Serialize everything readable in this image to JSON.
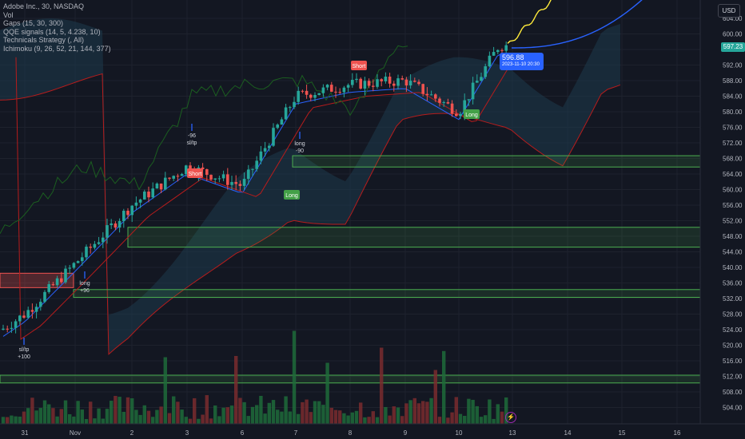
{
  "legend": {
    "symbol": "Adobe Inc., 30, NASDAQ",
    "vol": "Vol",
    "gaps": "Gaps (15, 30, 300)",
    "qqe": "QQE signals (14, 5, 4.238, 10)",
    "strategy": "Technicals Strategy (, All)",
    "ichimoku": "Ichimoku (9, 26, 52, 21, 144, 377)"
  },
  "currency": "USD",
  "last_price": "597.23",
  "tooltip": {
    "price": "596.88",
    "datetime": "2023-11-10 20:30"
  },
  "icons": {
    "lightning": "lightning-icon"
  },
  "colors": {
    "background": "#131722",
    "up": "#26a69a",
    "down": "#ef5350",
    "tenkan": "#2962ff",
    "kijun": "#b71c1c",
    "chikou": "#1b5e20",
    "cloud": "#1e3a4c",
    "gap_green": "#4caf50",
    "gap_red": "#ef5350",
    "projection_yellow": "#ffeb3b",
    "projection_blue": "#2962ff"
  },
  "chart_data": {
    "type": "candlestick",
    "x_ticks": [
      "31",
      "Nov",
      "2",
      "3",
      "6",
      "7",
      "8",
      "9",
      "10",
      "13",
      "14",
      "15",
      "16"
    ],
    "y_ticks": [
      504,
      508,
      512,
      516,
      520,
      524,
      528,
      532,
      536,
      540,
      544,
      548,
      552,
      556,
      560,
      564,
      568,
      572,
      576,
      580,
      584,
      588,
      592,
      596,
      600,
      604
    ],
    "ylim": [
      502,
      607
    ],
    "key_points": [
      {
        "session": "31",
        "price": 528
      },
      {
        "session": "Nov",
        "price": 541
      },
      {
        "session": "2",
        "price": 556
      },
      {
        "session": "3",
        "price": 566
      },
      {
        "session": "6",
        "price": 561
      },
      {
        "session": "7",
        "price": 584
      },
      {
        "session": "8",
        "price": 587
      },
      {
        "session": "9",
        "price": 588
      },
      {
        "session": "10",
        "price": 580
      },
      {
        "session": "10",
        "price": 597
      }
    ],
    "gap_zones": [
      {
        "low": 534.8,
        "high": 538.5,
        "color": "red"
      },
      {
        "low": 532.3,
        "high": 534.3,
        "color": "green"
      },
      {
        "low": 545.2,
        "high": 550.3,
        "color": "green"
      },
      {
        "low": 565.8,
        "high": 568.7,
        "color": "green"
      },
      {
        "low": 510.3,
        "high": 512.3,
        "color": "green"
      }
    ],
    "signals": [
      {
        "label": "sl/tp",
        "value": "+100",
        "session": "31"
      },
      {
        "label": "long",
        "value": "+96",
        "session": "Nov"
      },
      {
        "label": "-96",
        "value": "sl/tp",
        "session": "3"
      },
      {
        "label": "Short",
        "session": "3"
      },
      {
        "label": "Long",
        "session": "6"
      },
      {
        "label": "long",
        "value": "-90",
        "session": "7"
      },
      {
        "label": "Short",
        "session": "8"
      },
      {
        "label": "Long",
        "session": "10"
      }
    ]
  }
}
